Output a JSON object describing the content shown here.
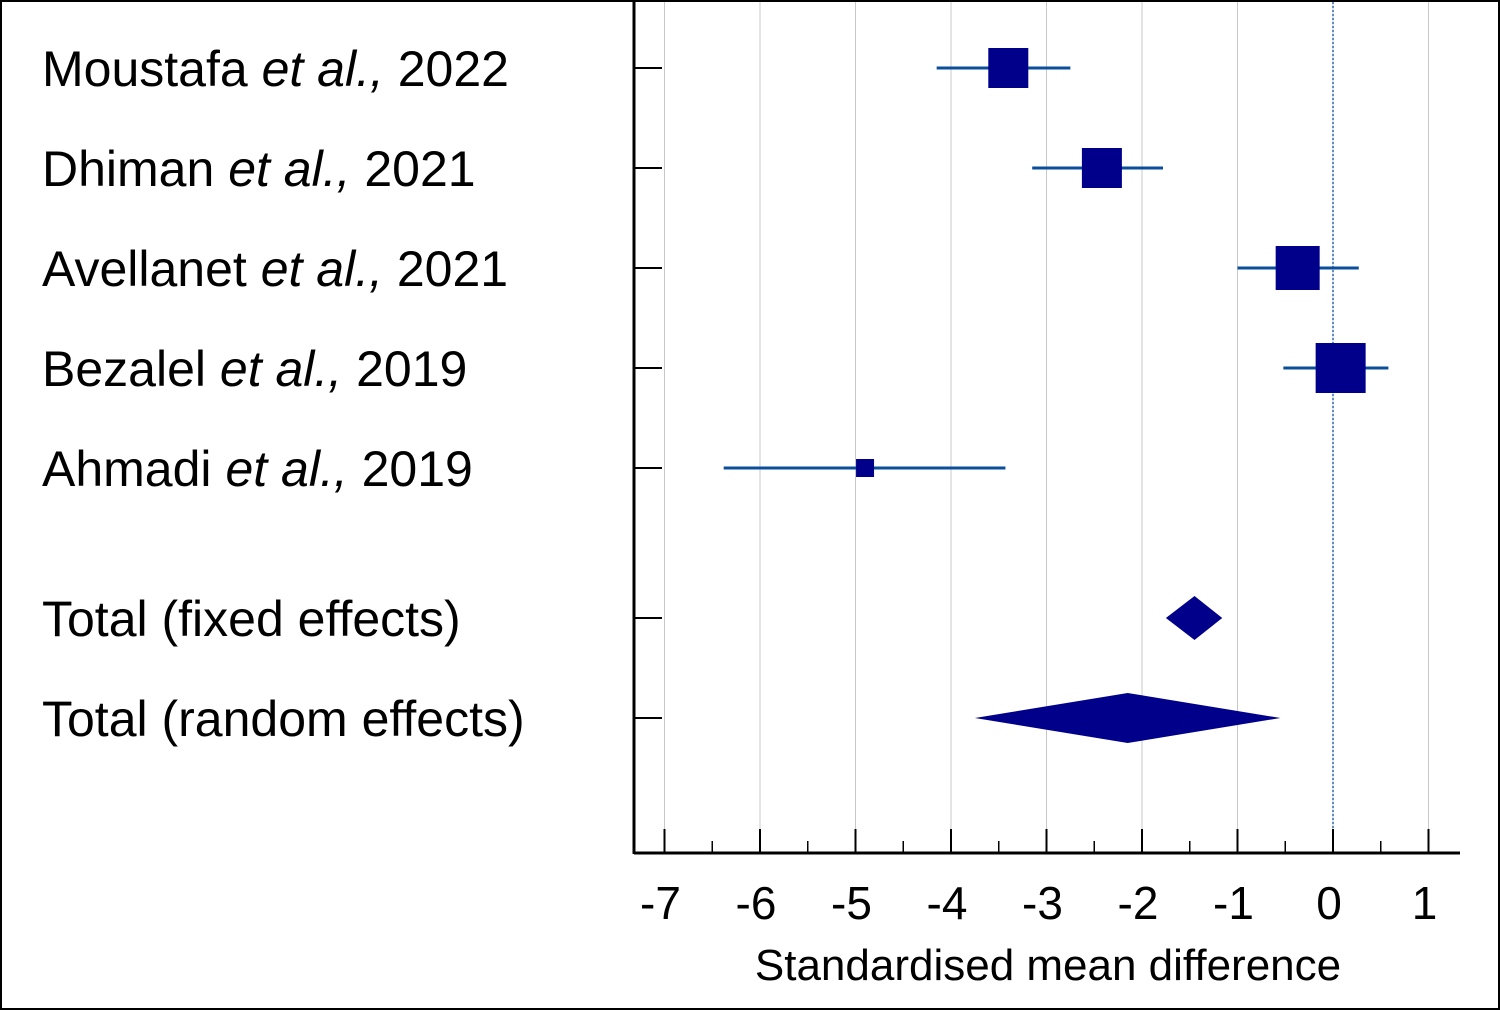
{
  "chart_data": {
    "type": "forest",
    "xlabel": "Standardised mean difference",
    "xlim": [
      -7,
      1
    ],
    "xticks": [
      "-7",
      "-6",
      "-5",
      "-4",
      "-3",
      "-2",
      "-1",
      "0",
      "1"
    ],
    "grid": true,
    "reference_line": 0,
    "marker_color": "#00008b",
    "line_color": "#0b4f9c",
    "studies": [
      {
        "author": "Moustafa",
        "etal": "et al.,",
        "year": "2022",
        "estimate": -3.4,
        "ci_low": -4.15,
        "ci_high": -2.75,
        "weight": 1.0
      },
      {
        "author": "Dhiman",
        "etal": "et al.,",
        "year": "2021",
        "estimate": -2.42,
        "ci_low": -3.15,
        "ci_high": -1.78,
        "weight": 1.0
      },
      {
        "author": "Avellanet",
        "etal": "et al.,",
        "year": "2021",
        "estimate": -0.37,
        "ci_low": -1.0,
        "ci_high": 0.27,
        "weight": 1.1
      },
      {
        "author": "Bezalel",
        "etal": "et al.,",
        "year": "2019",
        "estimate": 0.08,
        "ci_low": -0.52,
        "ci_high": 0.58,
        "weight": 1.25
      },
      {
        "author": "Ahmadi",
        "etal": "et al.,",
        "year": "2019",
        "estimate": -4.9,
        "ci_low": -6.38,
        "ci_high": -3.43,
        "weight": 0.45
      }
    ],
    "totals": [
      {
        "label": "Total (fixed effects)",
        "estimate": -1.45,
        "ci_low": -1.75,
        "ci_high": -1.16
      },
      {
        "label": "Total (random effects)",
        "estimate": -2.15,
        "ci_low": -3.75,
        "ci_high": -0.55
      }
    ]
  }
}
